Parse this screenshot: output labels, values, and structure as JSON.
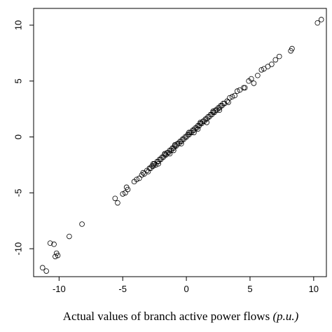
{
  "chart_data": {
    "type": "scatter",
    "xlabel": "Actual values of branch active power flows",
    "xlabel_unit": "(p.u.)",
    "ylabel": "",
    "xlim": [
      -12,
      11
    ],
    "ylim": [
      -12.5,
      11.5
    ],
    "x_ticks": [
      -10,
      -5,
      0,
      5,
      10
    ],
    "y_ticks": [
      -10,
      -5,
      0,
      5,
      10
    ],
    "x_tick_labels": [
      "-10",
      "-5",
      "0",
      "5",
      "10"
    ],
    "y_tick_labels": [
      "-10",
      "-5",
      "0",
      "5",
      "10"
    ],
    "grid": false,
    "series": [
      {
        "marker": "open-circle",
        "x": [
          -11.3,
          -11.0,
          -10.7,
          -10.4,
          -10.2,
          -10.3,
          -10.1,
          -9.2,
          -8.2,
          -5.6,
          -5.4,
          -5.0,
          -4.8,
          -4.7,
          -4.6,
          -4.1,
          -3.9,
          -3.7,
          -3.5,
          -3.3,
          -3.1,
          -3.0,
          -2.9,
          -2.8,
          -2.7,
          -2.6,
          -2.5,
          -2.4,
          -2.3,
          -2.2,
          -2.1,
          -2.0,
          -1.9,
          -1.8,
          -1.7,
          -1.6,
          -1.5,
          -1.4,
          -1.3,
          -1.2,
          -1.1,
          -1.0,
          -0.9,
          -0.8,
          -0.7,
          -0.6,
          -0.5,
          -0.4,
          -0.3,
          -0.2,
          -0.1,
          0.0,
          0.1,
          0.2,
          0.3,
          0.4,
          0.5,
          0.6,
          0.7,
          0.8,
          0.9,
          1.0,
          1.1,
          1.2,
          1.3,
          1.4,
          1.5,
          1.6,
          1.7,
          1.8,
          1.9,
          2.0,
          2.1,
          2.2,
          2.3,
          2.4,
          2.5,
          2.6,
          2.7,
          2.8,
          2.9,
          3.0,
          3.2,
          3.4,
          3.6,
          3.8,
          4.0,
          4.2,
          4.5,
          4.6,
          4.9,
          5.1,
          5.3,
          5.6,
          5.9,
          6.1,
          6.4,
          6.7,
          7.0,
          7.3,
          8.2,
          8.3,
          10.3,
          10.6,
          -2.6,
          -2.2,
          -1.7,
          -1.3,
          -0.9,
          -0.4,
          0.2,
          0.6,
          1.1,
          1.6,
          2.1,
          2.6,
          -3.4,
          -1.0,
          0.9,
          3.3
        ],
        "y": [
          -11.7,
          -12.0,
          -9.5,
          -9.6,
          -10.4,
          -10.7,
          -10.6,
          -8.9,
          -7.8,
          -5.5,
          -5.9,
          -5.1,
          -5.0,
          -4.5,
          -4.7,
          -4.0,
          -3.8,
          -3.7,
          -3.4,
          -3.3,
          -3.0,
          -3.1,
          -2.8,
          -2.8,
          -2.6,
          -2.6,
          -2.4,
          -2.5,
          -2.2,
          -2.2,
          -2.0,
          -2.0,
          -1.8,
          -1.8,
          -1.6,
          -1.6,
          -1.4,
          -1.4,
          -1.2,
          -1.2,
          -1.0,
          -1.0,
          -0.8,
          -0.8,
          -0.6,
          -0.6,
          -0.4,
          -0.4,
          -0.2,
          -0.2,
          0.0,
          0.0,
          0.2,
          0.2,
          0.4,
          0.4,
          0.6,
          0.6,
          0.8,
          0.8,
          1.0,
          1.0,
          1.2,
          1.2,
          1.4,
          1.4,
          1.6,
          1.6,
          1.8,
          1.8,
          2.0,
          2.0,
          2.2,
          2.2,
          2.4,
          2.4,
          2.6,
          2.6,
          2.8,
          2.8,
          3.0,
          3.0,
          3.2,
          3.5,
          3.6,
          3.7,
          4.1,
          4.2,
          4.4,
          4.4,
          5.0,
          5.2,
          4.8,
          5.5,
          6.0,
          6.1,
          6.3,
          6.5,
          6.9,
          7.2,
          7.7,
          7.9,
          10.2,
          10.5,
          -2.4,
          -2.4,
          -1.5,
          -1.5,
          -0.7,
          -0.6,
          0.4,
          0.4,
          1.3,
          1.3,
          2.3,
          2.4,
          -3.2,
          -1.2,
          0.7,
          3.1
        ]
      }
    ]
  }
}
